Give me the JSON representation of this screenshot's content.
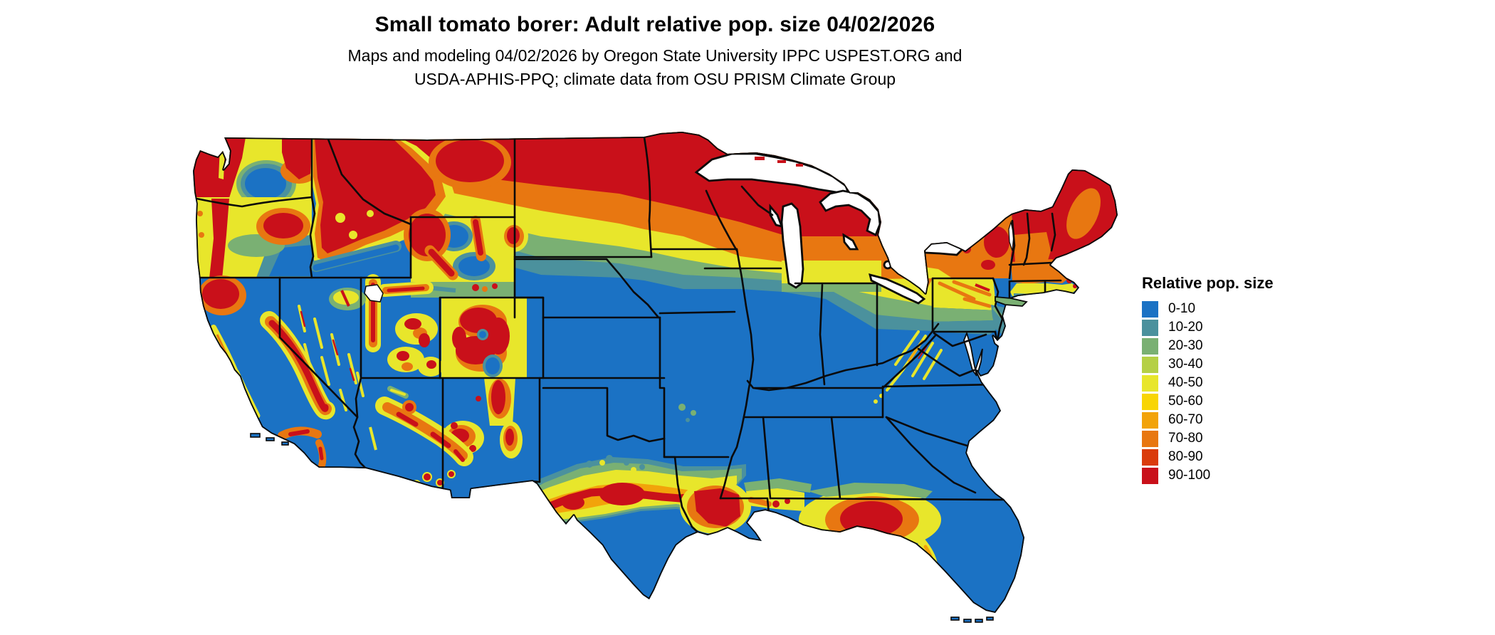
{
  "header": {
    "title": "Small tomato borer: Adult relative pop. size 04/02/2026",
    "subtitle": [
      "Maps and modeling 04/02/2026 by Oregon State University IPPC USPEST.ORG and",
      "USDA-APHIS-PPQ; climate data from OSU PRISM Climate Group"
    ]
  },
  "legend": {
    "title": "Relative pop. size",
    "items": [
      {
        "label": "0-10",
        "color": "#1B72C4"
      },
      {
        "label": "10-20",
        "color": "#4B919D"
      },
      {
        "label": "20-30",
        "color": "#7AB073"
      },
      {
        "label": "30-40",
        "color": "#B5D045"
      },
      {
        "label": "40-50",
        "color": "#E8E62B"
      },
      {
        "label": "50-60",
        "color": "#F8D504"
      },
      {
        "label": "60-70",
        "color": "#F2A30A"
      },
      {
        "label": "70-80",
        "color": "#E87711"
      },
      {
        "label": "80-90",
        "color": "#DA3B0B"
      },
      {
        "label": "90-100",
        "color": "#C9101A"
      }
    ]
  }
}
